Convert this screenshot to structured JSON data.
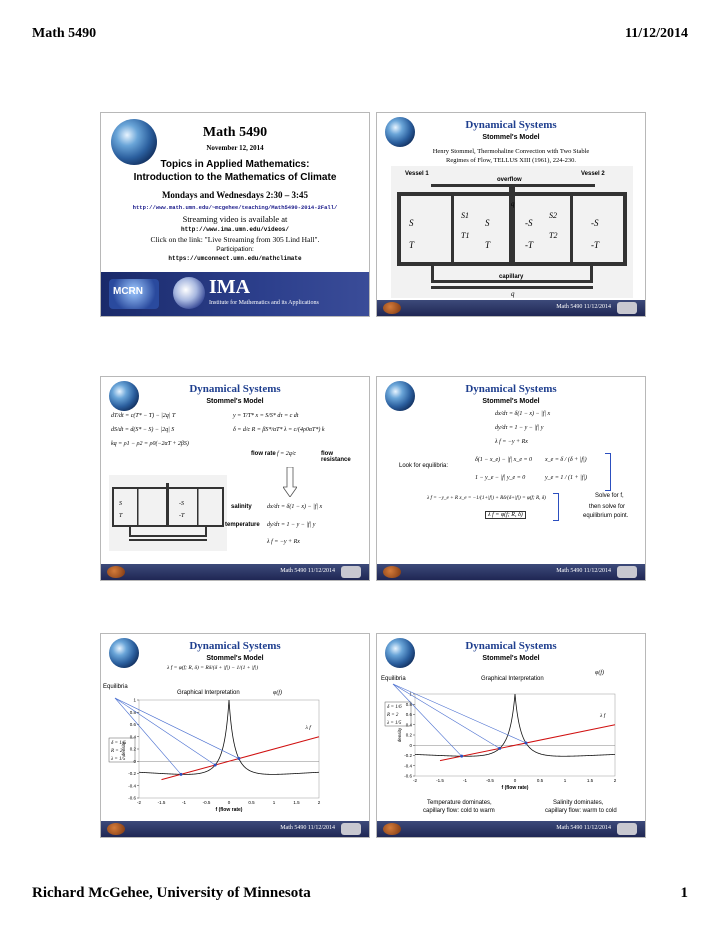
{
  "page": {
    "header_left": "Math 5490",
    "header_right": "11/12/2014",
    "footer_left": "Richard McGehee, University of Minnesota",
    "footer_right": "1"
  },
  "slide_footer": "Math 5490  11/12/2014",
  "title_slide": {
    "title": "Math 5490",
    "date": "November 12, 2014",
    "topics": "Topics in Applied Mathematics:",
    "course": "Introduction to the Mathematics of Climate",
    "schedule": "Mondays and Wednesdays 2:30 – 3:45",
    "url": "http://www.math.umn.edu/~mcgehee/teaching/Math5490-2014-2Fall/",
    "streaming": "Streaming video is available at",
    "video_url": "http://www.ima.umn.edu/videos/",
    "click_text": "Click on the link: \"Live Streaming from 305 Lind Hall\".",
    "participation": "Participation:",
    "participation_url": "https://umconnect.umn.edu/mathclimate",
    "mcrn": "MCRN",
    "ima": "IMA",
    "ima_sub": "Institute for Mathematics and its Applications"
  },
  "slide2": {
    "title": "Dynamical Systems",
    "subtitle": "Stommel's Model",
    "ref_line1": "Henry Stommel, Thermohaline Convection with Two Stable",
    "ref_line2": "Regimes of Flow, TELLUS XIII (1961), 224-230.",
    "vessel1": "Vessel 1",
    "vessel2": "Vessel 2",
    "overflow": "overflow",
    "capillary": "capillary",
    "q_label": "q",
    "s_label": "S",
    "t_label": "T",
    "s1": "S1",
    "t1": "T1",
    "s2": "S2",
    "t2": "T2",
    "neg_s": "-S",
    "neg_t": "-T"
  },
  "slide3": {
    "title": "Dynamical Systems",
    "subtitle": "Stommel's Model",
    "eq1": "dT/dt = c(T* − T) − |2q| T",
    "eq2": "dS/dt = d(S* − S) − |2q| S",
    "eq3": "kq = ρ1 − ρ2 = ρ0(−2αT + 2βS)",
    "eq4": "y = T/T*   x = S/S*   dτ = c dt",
    "eq5": "δ = d/c   R = βS*/αT*   λ = c/(4ρ0αT*) k",
    "flow_rate": "flow rate",
    "flow_eq": "f = 2q/c",
    "flow_resistance": "flow resistance",
    "salinity": "salinity",
    "temperature": "temperature",
    "sal_eq": "dx/dτ = δ(1 − x) − |f| x",
    "temp_eq": "dy/dτ = 1 − y − |f| y",
    "lam_eq": "λ f = −y + Rx"
  },
  "slide4": {
    "title": "Dynamical Systems",
    "subtitle": "Stommel's Model",
    "sys1": "dx/dτ = δ(1 − x) − |f| x",
    "sys2": "dy/dτ = 1 − y − |f| y",
    "sys3": "λ f = −y + Rx",
    "look": "Look for equilibria:",
    "eqx": "δ(1 − x_e) − |f| x_e = 0",
    "eqx_sol": "x_e = δ / (δ + |f|)",
    "eqy": "1 − y_e − |f| y_e = 0",
    "eqy_sol": "y_e = 1 / (1 + |f|)",
    "lam": "λ f = −y_e + R x_e = −1/(1+|f|) + Rδ/(δ+|f|) = φ(f; R, δ)",
    "lam_box": "λ f = φ(f; R, δ)",
    "solve": "Solve for f,",
    "then": "then solve for",
    "eqp": "equilibrium point."
  },
  "slide5": {
    "title": "Dynamical Systems",
    "subtitle": "Stommel's Model",
    "formula": "λ f = φ(f; R, δ) = Rδ/(δ + |f|) − 1/(1 + |f|)",
    "equilibria": "Equilibria",
    "graph_title": "Graphical Interpretation",
    "phi_label": "φ(f)",
    "lf_label": "λ f",
    "params": [
      "δ = 1/6",
      "R = 2",
      "λ = 1/5"
    ],
    "xlabel": "f  (flow rate)",
    "ylabel": "density",
    "yticks": [
      "1",
      "0.8",
      "0.6",
      "0.4",
      "0.2",
      "0",
      "-0.2",
      "-0.4",
      "-0.6"
    ],
    "xticks": [
      "-2",
      "-1.5",
      "-1",
      "-0.5",
      "0",
      "0.5",
      "1",
      "1.5",
      "2"
    ]
  },
  "slide6": {
    "title": "Dynamical Systems",
    "subtitle": "Stommel's Model",
    "equilibria": "Equilibria",
    "graph_title": "Graphical Interpretation",
    "phi_label": "φ(f)",
    "lf_label": "λ f",
    "params": [
      "δ = 1/6",
      "R = 2",
      "λ = 1/5"
    ],
    "xlabel": "f  (flow rate)",
    "ylabel": "density",
    "yticks": [
      "1",
      "0.8",
      "0.6",
      "0.4",
      "0.2",
      "0",
      "-0.2",
      "-0.4",
      "-0.6"
    ],
    "xticks": [
      "-2",
      "-1.5",
      "-1",
      "-0.5",
      "0",
      "0.5",
      "1",
      "1.5",
      "2"
    ],
    "temp_dom1": "Temperature dominates,",
    "temp_dom2": "capillary flow: cold to warm",
    "sal_dom1": "Salinity dominates,",
    "sal_dom2": "capillary flow: warm to cold"
  }
}
